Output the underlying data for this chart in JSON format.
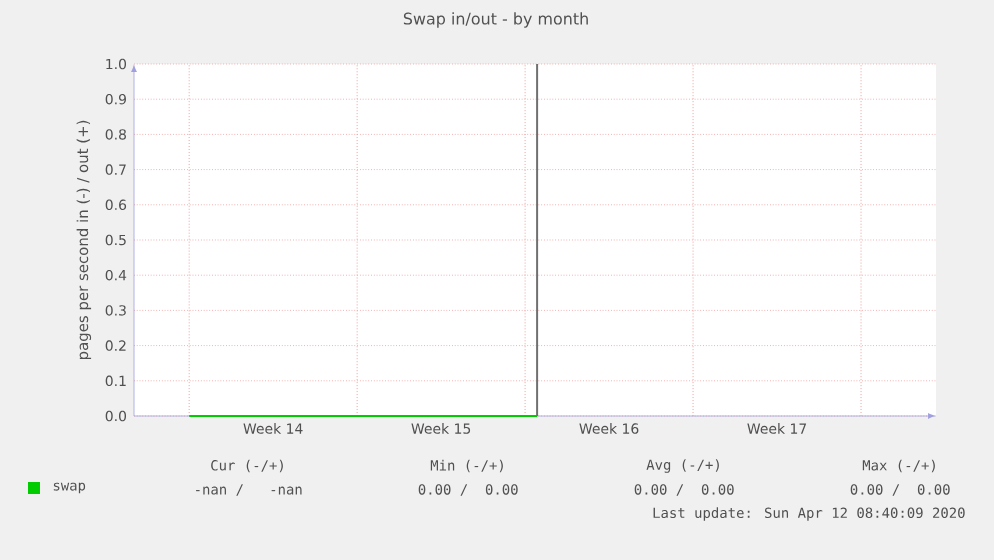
{
  "chart_data": {
    "type": "line",
    "title": "Swap in/out - by month",
    "ylabel": "pages per second in (-) / out (+)",
    "categories": [
      null,
      null,
      null,
      null,
      null,
      null,
      null,
      "Week 14",
      null,
      null,
      null,
      null,
      null,
      null,
      null,
      null,
      null,
      null,
      null,
      null,
      null,
      "Week 15",
      null,
      null,
      null,
      null,
      null,
      null,
      null,
      null,
      null,
      null,
      null,
      null,
      null,
      "Week 16",
      null,
      null,
      null,
      null,
      null,
      null,
      null,
      null,
      null,
      null,
      null,
      null,
      null,
      "Week 17",
      null,
      null,
      null,
      null,
      null,
      null,
      null,
      null,
      null,
      null,
      null,
      null,
      null
    ],
    "series": [
      {
        "name": "swap",
        "color": "#00cc00",
        "values": [
          0,
          0,
          0,
          0,
          0,
          0,
          0,
          0,
          0,
          0,
          0,
          0,
          0,
          0,
          0,
          0,
          0,
          0,
          0,
          0,
          0,
          0,
          0,
          0,
          0,
          0,
          0,
          0,
          0,
          0,
          null,
          null,
          null,
          null,
          null,
          null,
          null,
          null,
          null,
          null,
          null,
          null,
          null,
          null,
          null,
          null,
          null,
          null,
          null,
          null,
          null,
          null,
          null,
          null,
          null,
          null,
          null,
          null,
          null,
          null,
          null,
          null,
          null
        ]
      },
      {
        "type": "bar",
        "color": "#707070",
        "values": [
          null,
          null,
          null,
          null,
          null,
          null,
          null,
          null,
          null,
          null,
          null,
          null,
          null,
          null,
          null,
          null,
          null,
          null,
          null,
          null,
          null,
          null,
          null,
          null,
          null,
          null,
          null,
          null,
          null,
          1,
          null,
          null,
          null,
          null,
          null,
          null,
          null,
          null,
          null,
          null,
          null,
          null,
          null,
          null,
          null,
          null,
          null,
          null,
          null,
          null,
          null,
          null,
          null,
          null,
          null,
          null,
          null,
          null,
          null,
          null,
          null,
          null,
          null
        ]
      }
    ],
    "ylim": [
      0,
      1
    ],
    "yticks": [
      {
        "value": 0,
        "label": "0.0"
      },
      0.1,
      0.2,
      0.3,
      0.4,
      0.5,
      0.6,
      0.7,
      0.8,
      0.9,
      {
        "value": 1,
        "label": "1.0"
      }
    ],
    "grid": true,
    "legend": "bottom",
    "marker": "none",
    "line_style": "solid",
    "annotations": [
      "Cur (-/+)",
      "Min (-/+)",
      "Avg (-/+)",
      "Max (-/+)",
      "-nan /   -nan",
      "0.00 /  0.00",
      "0.00 /  0.00",
      "0.00 /  0.00",
      "Last update: Sun Apr 12 08:40:09 2020"
    ]
  }
}
